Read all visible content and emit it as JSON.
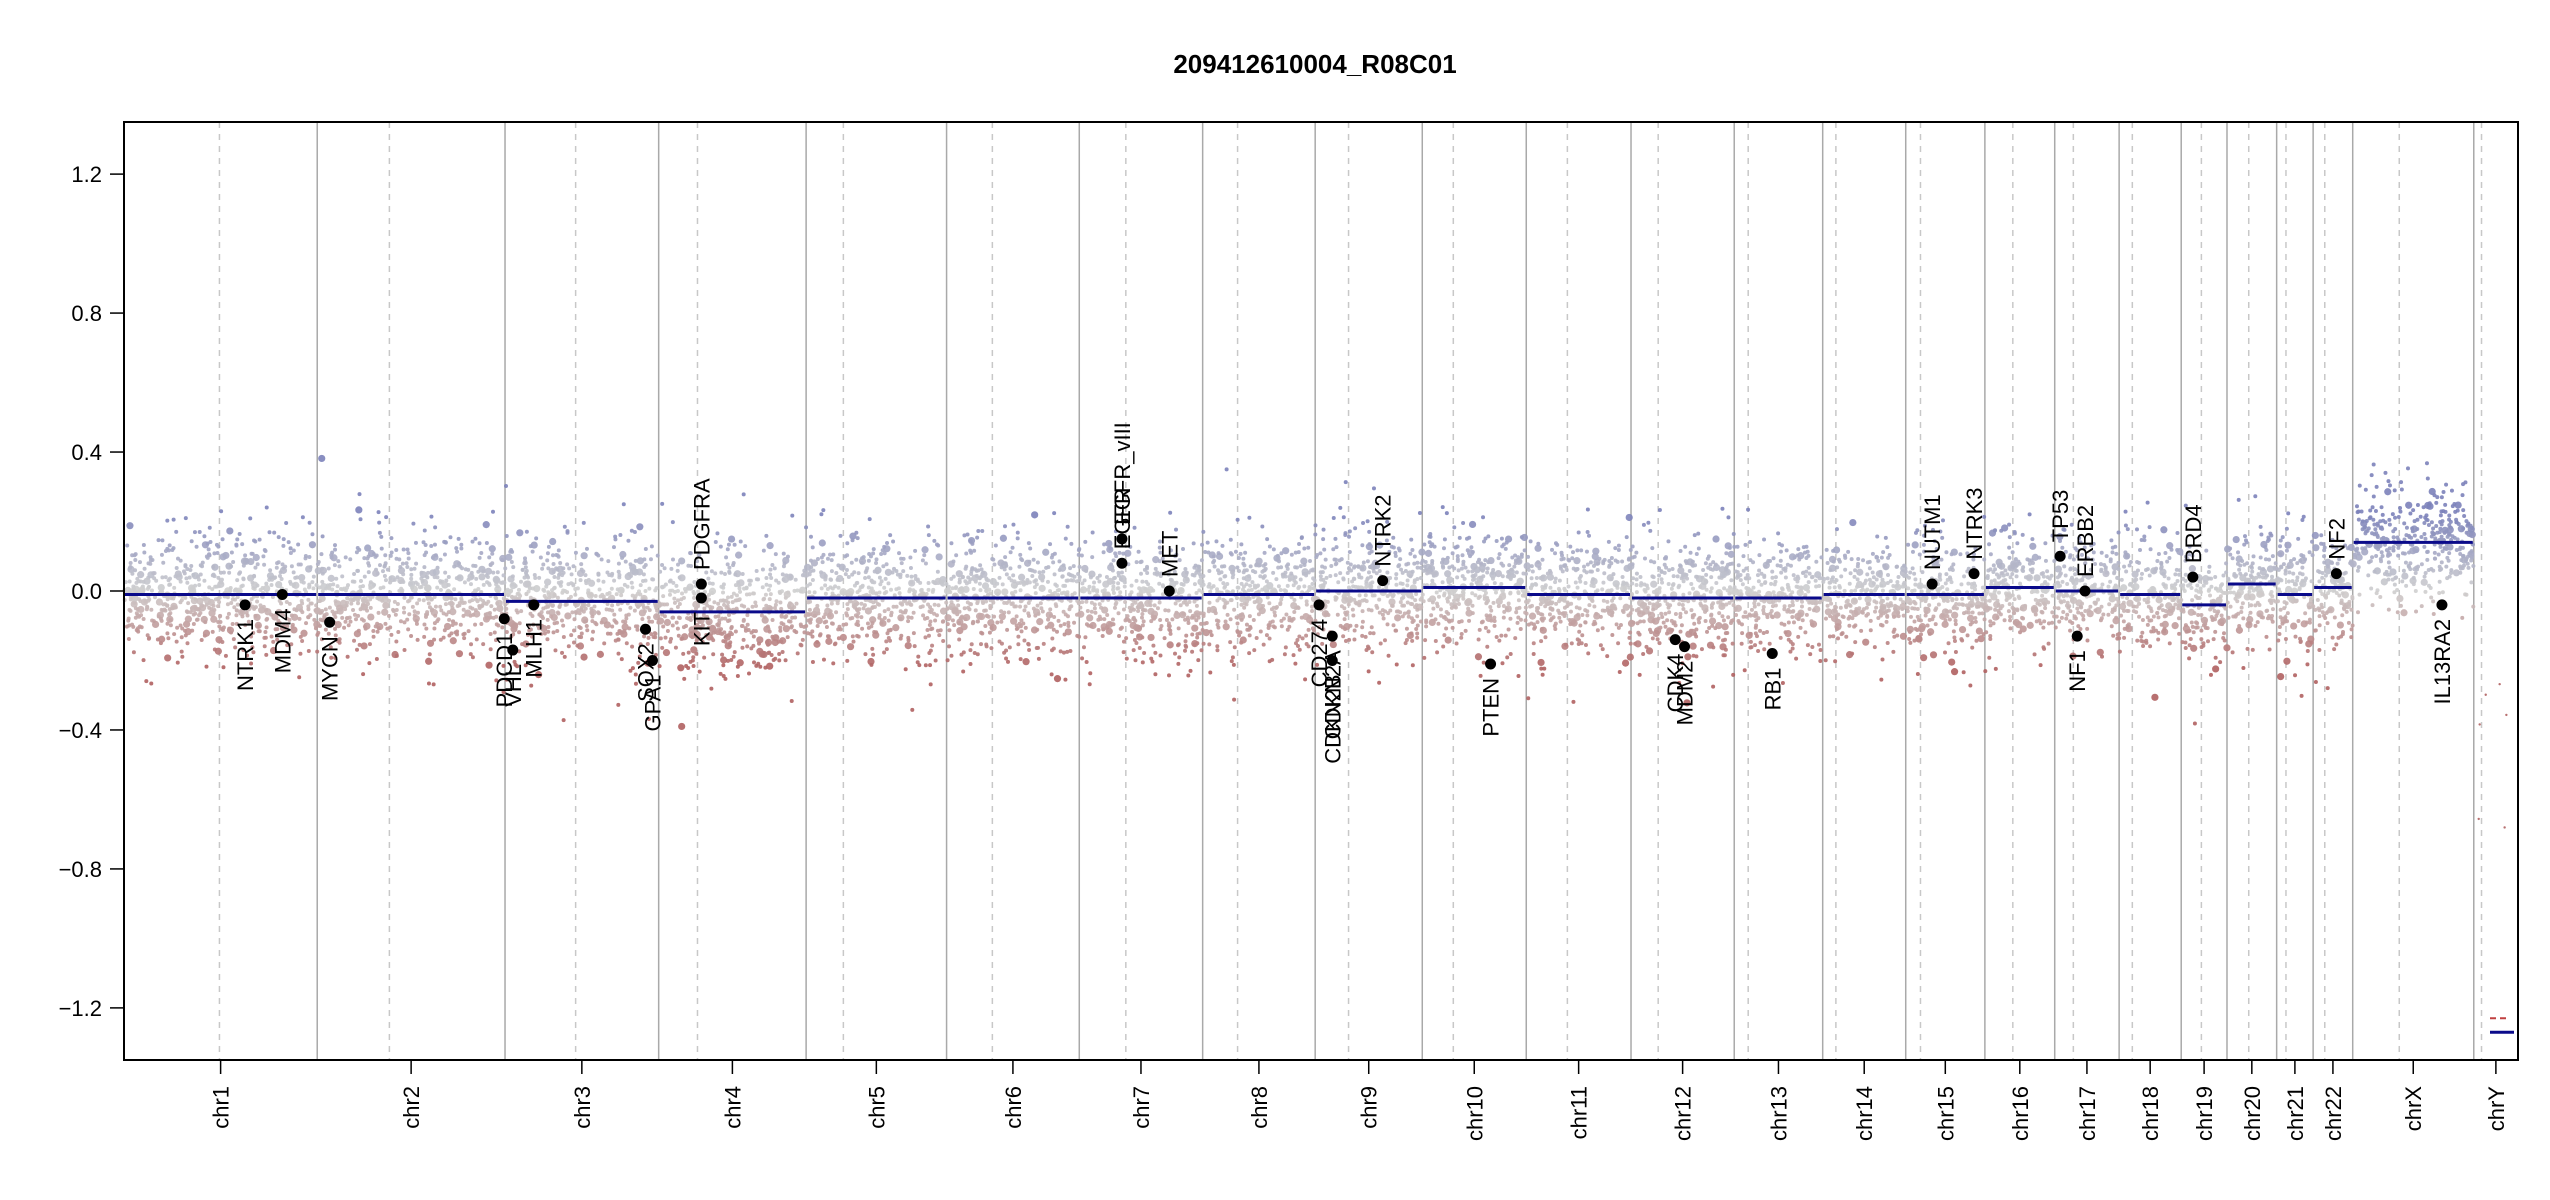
{
  "chart_data": {
    "type": "scatter",
    "title": "209412610004_R08C01",
    "xlabel": "",
    "ylabel": "",
    "ylim": [
      -1.35,
      1.35
    ],
    "y_ticks": [
      -1.2,
      -0.8,
      -0.4,
      0.0,
      0.4,
      0.8,
      1.2
    ],
    "y_tick_labels": [
      "−1.2",
      "−0.8",
      "−0.4",
      "0.0",
      "0.4",
      "0.8",
      "1.2"
    ],
    "colors": {
      "gain": "#8a8fc0",
      "loss": "#b56a6a",
      "neutral": "#cfcfcf",
      "segment": "#0a0a8a",
      "chrom_border": "#a9a9a9",
      "centromere": "#c8c8c8",
      "gene_point": "#000000"
    },
    "chromosomes": [
      {
        "name": "chr1",
        "size": 249,
        "cen": 123,
        "seg": -0.01
      },
      {
        "name": "chr2",
        "size": 242,
        "cen": 93,
        "seg": -0.01
      },
      {
        "name": "chr3",
        "size": 198,
        "cen": 91,
        "seg": -0.03
      },
      {
        "name": "chr4",
        "size": 190,
        "cen": 50,
        "seg": -0.06
      },
      {
        "name": "chr5",
        "size": 181,
        "cen": 48,
        "seg": -0.02
      },
      {
        "name": "chr6",
        "size": 171,
        "cen": 59,
        "seg": -0.02
      },
      {
        "name": "chr7",
        "size": 159,
        "cen": 60,
        "seg": -0.02
      },
      {
        "name": "chr8",
        "size": 145,
        "cen": 45,
        "seg": -0.01
      },
      {
        "name": "chr9",
        "size": 138,
        "cen": 43,
        "seg": 0.0
      },
      {
        "name": "chr10",
        "size": 134,
        "cen": 40,
        "seg": 0.01
      },
      {
        "name": "chr11",
        "size": 135,
        "cen": 53,
        "seg": -0.01
      },
      {
        "name": "chr12",
        "size": 133,
        "cen": 35,
        "seg": -0.02
      },
      {
        "name": "chr13",
        "size": 114,
        "cen": 18,
        "seg": -0.02
      },
      {
        "name": "chr14",
        "size": 107,
        "cen": 17,
        "seg": -0.01
      },
      {
        "name": "chr15",
        "size": 102,
        "cen": 19,
        "seg": -0.01
      },
      {
        "name": "chr16",
        "size": 90,
        "cen": 36,
        "seg": 0.01
      },
      {
        "name": "chr17",
        "size": 83,
        "cen": 24,
        "seg": 0.0
      },
      {
        "name": "chr18",
        "size": 80,
        "cen": 17,
        "seg": -0.01
      },
      {
        "name": "chr19",
        "size": 59,
        "cen": 26,
        "seg": -0.04
      },
      {
        "name": "chr20",
        "size": 64,
        "cen": 28,
        "seg": 0.02
      },
      {
        "name": "chr21",
        "size": 47,
        "cen": 12,
        "seg": -0.01
      },
      {
        "name": "chr22",
        "size": 51,
        "cen": 15,
        "seg": 0.01
      },
      {
        "name": "chrX",
        "size": 156,
        "cen": 60,
        "seg": 0.14
      },
      {
        "name": "chrY",
        "size": 57,
        "cen": 10,
        "seg": -1.27
      }
    ],
    "genes": [
      {
        "name": "NTRK1",
        "chr": "chr1",
        "pos": 156,
        "y": -0.04
      },
      {
        "name": "MDM4",
        "chr": "chr1",
        "pos": 204,
        "y": -0.01
      },
      {
        "name": "MYCN",
        "chr": "chr2",
        "pos": 16,
        "y": -0.09
      },
      {
        "name": "PDCD1",
        "chr": "chr2",
        "pos": 241,
        "y": -0.08
      },
      {
        "name": "VHL",
        "chr": "chr3",
        "pos": 10,
        "y": -0.17
      },
      {
        "name": "MLH1",
        "chr": "chr3",
        "pos": 37,
        "y": -0.04
      },
      {
        "name": "SOX2",
        "chr": "chr3",
        "pos": 181,
        "y": -0.11
      },
      {
        "name": "GPA1",
        "chr": "chr3",
        "pos": 190,
        "y": -0.2
      },
      {
        "name": "KIT",
        "chr": "chr4",
        "pos": 55,
        "y": -0.02
      },
      {
        "name": "PDGFRA",
        "chr": "chr4",
        "pos": 55,
        "y": 0.02
      },
      {
        "name": "EGFR",
        "chr": "chr7",
        "pos": 55,
        "y": 0.08
      },
      {
        "name": "EGFR_vIII",
        "chr": "chr7",
        "pos": 55,
        "y": 0.15
      },
      {
        "name": "MET",
        "chr": "chr7",
        "pos": 116,
        "y": 0.0
      },
      {
        "name": "CD274",
        "chr": "chr9",
        "pos": 5,
        "y": -0.04
      },
      {
        "name": "CDKN2A",
        "chr": "chr9",
        "pos": 22,
        "y": -0.13
      },
      {
        "name": "CDKN2B",
        "chr": "chr9",
        "pos": 22,
        "y": -0.2
      },
      {
        "name": "NTRK2",
        "chr": "chr9",
        "pos": 87,
        "y": 0.03
      },
      {
        "name": "PTEN",
        "chr": "chr10",
        "pos": 88,
        "y": -0.21
      },
      {
        "name": "CDK4",
        "chr": "chr12",
        "pos": 57,
        "y": -0.14
      },
      {
        "name": "MDM2",
        "chr": "chr12",
        "pos": 69,
        "y": -0.16
      },
      {
        "name": "RB1",
        "chr": "chr13",
        "pos": 49,
        "y": -0.18
      },
      {
        "name": "NUTM1",
        "chr": "chr15",
        "pos": 34,
        "y": 0.02
      },
      {
        "name": "NTRK3",
        "chr": "chr15",
        "pos": 88,
        "y": 0.05
      },
      {
        "name": "TP53",
        "chr": "chr17",
        "pos": 7,
        "y": 0.1
      },
      {
        "name": "NF1",
        "chr": "chr17",
        "pos": 29,
        "y": -0.13
      },
      {
        "name": "ERBB2",
        "chr": "chr17",
        "pos": 39,
        "y": 0.0
      },
      {
        "name": "BRD4",
        "chr": "chr19",
        "pos": 15,
        "y": 0.04
      },
      {
        "name": "NF2",
        "chr": "chr22",
        "pos": 30,
        "y": 0.05
      },
      {
        "name": "IL13RA2",
        "chr": "chrX",
        "pos": 115,
        "y": -0.04
      }
    ]
  }
}
